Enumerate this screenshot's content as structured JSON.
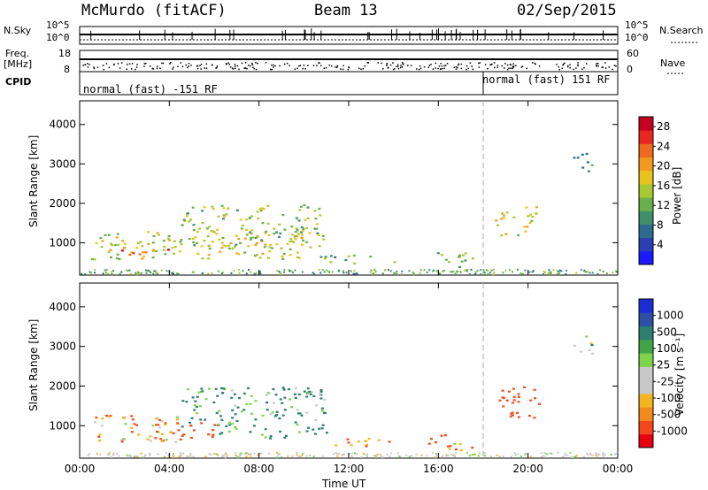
{
  "header": {
    "station": "McMurdo (fitACF)",
    "beam": "Beam 13",
    "date": "02/Sep/2015"
  },
  "summary": {
    "nsky_label": "N.Sky",
    "nsky_ticks": [
      "10^5",
      "10^0"
    ],
    "nsearch_label": "N.Search",
    "nsearch_ticks": [
      "10^5",
      "10^0"
    ],
    "freq_label": "Freq.",
    "freq_unit": "[MHz]",
    "freq_ticks": [
      "18",
      "8"
    ],
    "nave_label": "Nave",
    "nave_ticks": [
      "60",
      "0"
    ],
    "cpid_label": "CPID",
    "cpid_left": "normal (fast) -151 RF",
    "cpid_right": "normal (fast) 151 RF"
  },
  "colors": {
    "power_scale": [
      "#1a1aff",
      "#2a3fb4",
      "#2e6a8e",
      "#3e8f6a",
      "#6ab04a",
      "#a8c832",
      "#e8c21e",
      "#f39a1e",
      "#ee6a1e",
      "#e8281e",
      "#c4001e"
    ],
    "velocity_scale": [
      "#e8000f",
      "#f3491a",
      "#f38a1e",
      "#f3b41e",
      "#c8c8c8",
      "#c8c8c8",
      "#7ed34a",
      "#3fa548",
      "#2d7f6f",
      "#2d4fa8",
      "#1a2fd3"
    ]
  },
  "chart_data": [
    {
      "type": "heatmap",
      "name_in_image": "Power",
      "ylabel": "Slant Range [km]",
      "yticks": [
        "1000",
        "2000",
        "3000",
        "4000"
      ],
      "ylim": [
        180,
        4600
      ],
      "xlabel": "Time UT",
      "xticks": [
        "00:00",
        "04:00",
        "08:00",
        "12:00",
        "16:00",
        "20:00",
        "00:00"
      ],
      "xlim_hours": [
        0,
        24
      ],
      "colorbar_label": "Power [dB]",
      "colorbar_ticks": [
        "4",
        "8",
        "12",
        "16",
        "20",
        "24",
        "28"
      ],
      "colorbar_range": [
        0,
        30
      ],
      "marker_hour": 18,
      "echo_regions": [
        {
          "t0": 0.5,
          "t1": 10.5,
          "r0": 600,
          "r1": 1300,
          "level": 16
        },
        {
          "t0": 4.5,
          "t1": 11.0,
          "r0": 900,
          "r1": 2000,
          "level": 14
        },
        {
          "t0": 1.0,
          "t1": 4.0,
          "r0": 700,
          "r1": 900,
          "level": 24
        },
        {
          "t0": 10.5,
          "t1": 14.0,
          "r0": 500,
          "r1": 700,
          "level": 12
        },
        {
          "t0": 15.5,
          "t1": 17.5,
          "r0": 400,
          "r1": 800,
          "level": 12
        },
        {
          "t0": 18.5,
          "t1": 19.5,
          "r0": 1200,
          "r1": 1800,
          "level": 18
        },
        {
          "t0": 19.5,
          "t1": 20.5,
          "r0": 1200,
          "r1": 2000,
          "level": 16
        },
        {
          "t0": 22.0,
          "t1": 23.0,
          "r0": 2800,
          "r1": 3300,
          "level": 8
        }
      ]
    },
    {
      "type": "heatmap",
      "name_in_image": "Velocity",
      "ylabel": "Slant Range [km]",
      "yticks": [
        "1000",
        "2000",
        "3000",
        "4000"
      ],
      "ylim": [
        180,
        4600
      ],
      "xlabel": "Time UT",
      "xticks": [
        "00:00",
        "04:00",
        "08:00",
        "12:00",
        "16:00",
        "20:00",
        "00:00"
      ],
      "xlim_hours": [
        0,
        24
      ],
      "colorbar_label": "Velocity [m s⁻¹]",
      "colorbar_ticks": [
        "-1000",
        "-500",
        "-100",
        "-25",
        "25",
        "100",
        "500",
        "1000"
      ],
      "marker_hour": 18,
      "echo_regions": [
        {
          "t0": 0.5,
          "t1": 4.5,
          "r0": 600,
          "r1": 1300,
          "velocity": -100
        },
        {
          "t0": 4.5,
          "t1": 11.0,
          "r0": 700,
          "r1": 2000,
          "velocity": 150
        },
        {
          "t0": 3.0,
          "t1": 6.0,
          "r0": 700,
          "r1": 1100,
          "velocity": -200
        },
        {
          "t0": 10.5,
          "t1": 14.0,
          "r0": 500,
          "r1": 700,
          "velocity": -100
        },
        {
          "t0": 15.5,
          "t1": 17.5,
          "r0": 400,
          "r1": 800,
          "velocity": -100
        },
        {
          "t0": 18.5,
          "t1": 20.5,
          "r0": 1200,
          "r1": 2000,
          "velocity": -300
        },
        {
          "t0": 22.0,
          "t1": 23.0,
          "r0": 2800,
          "r1": 3300,
          "velocity": 50
        }
      ]
    }
  ]
}
